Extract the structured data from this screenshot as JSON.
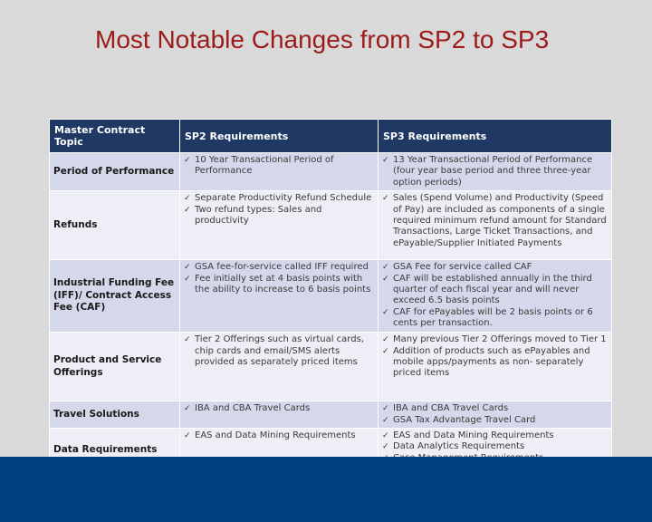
{
  "slide": {
    "title": "Most Notable Changes from SP2 to SP3"
  },
  "table": {
    "headers": [
      "Master Contract Topic",
      "SP2 Requirements",
      "SP3 Requirements"
    ],
    "rows": [
      {
        "topic": "Period of Performance",
        "sp2": [
          "10 Year Transactional Period of Performance"
        ],
        "sp3": [
          "13 Year Transactional Period of Performance (four year base period and three three-year option periods)"
        ]
      },
      {
        "topic": "Refunds",
        "sp2": [
          "Separate Productivity Refund Schedule",
          "Two refund types: Sales and productivity"
        ],
        "sp3": [
          "Sales (Spend Volume) and Productivity (Speed of Pay) are included as components of a single required minimum refund amount for Standard Transactions, Large Ticket Transactions, and ePayable/Supplier Initiated Payments"
        ]
      },
      {
        "topic": "Industrial Funding Fee (IFF)/ Contract Access Fee (CAF)",
        "sp2": [
          "GSA fee-for-service called IFF required",
          "Fee initially set at 4 basis points with the ability to increase to 6 basis points"
        ],
        "sp3": [
          "GSA Fee for service called CAF",
          "CAF will be established annually in the third quarter of each fiscal year and will never exceed 6.5 basis points",
          "CAF for ePayables will be 2 basis points or 6 cents per transaction."
        ]
      },
      {
        "topic": "Product and Service Offerings",
        "sp2": [
          "Tier 2 Offerings such as virtual cards, chip cards and email/SMS alerts provided as separately priced items"
        ],
        "sp3": [
          "Many previous Tier 2 Offerings moved to Tier 1",
          "Addition of products such as ePayables and mobile apps/payments as non- separately priced items"
        ]
      },
      {
        "topic": "Travel Solutions",
        "sp2": [
          "IBA and CBA Travel Cards"
        ],
        "sp3": [
          "IBA and CBA Travel Cards",
          "GSA Tax Advantage Travel Card"
        ]
      },
      {
        "topic": "Data Requirements",
        "sp2": [
          "EAS and Data Mining Requirements"
        ],
        "sp3": [
          "EAS and Data Mining Requirements",
          "Data Analytics Requirements",
          "Case Management Requirements"
        ]
      }
    ]
  }
}
